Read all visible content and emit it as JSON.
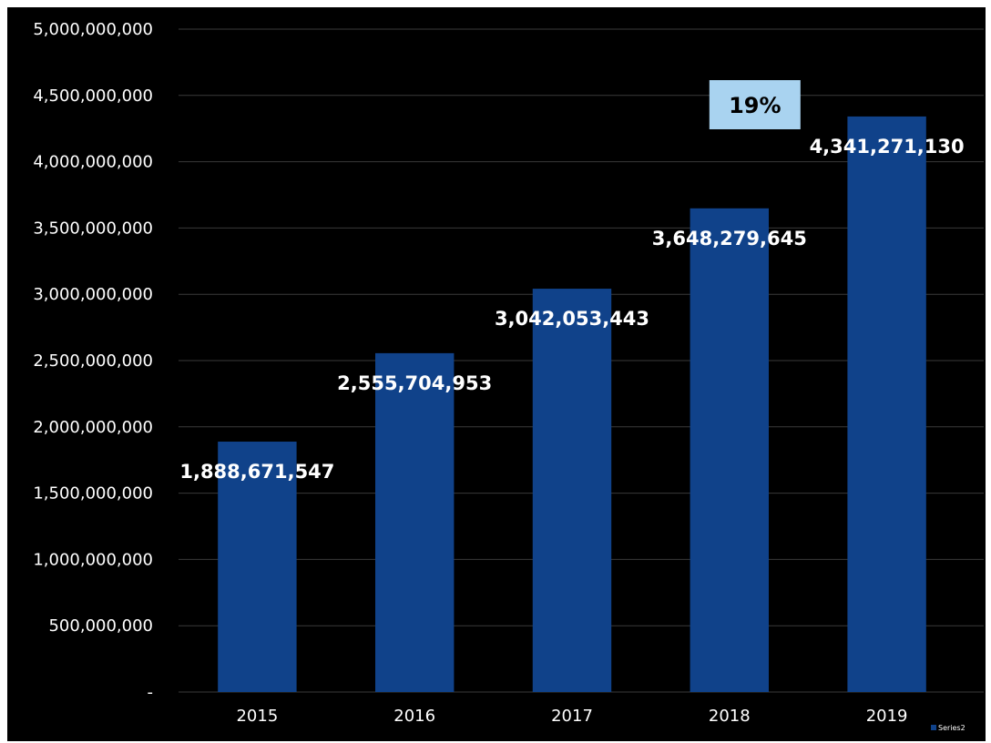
{
  "chart_data": {
    "type": "bar",
    "title": "",
    "xlabel": "",
    "ylabel": "",
    "categories": [
      "2015",
      "2016",
      "2017",
      "2018",
      "2019"
    ],
    "series": [
      {
        "name": "Series2",
        "values": [
          1888671547,
          2555704953,
          3042053443,
          3648279645,
          4341271130
        ],
        "labels": [
          "1,888,671,547",
          "2,555,704,953",
          "3,042,053,443",
          "3,648,279,645",
          "4,341,271,130"
        ],
        "color": "#10428a"
      }
    ],
    "ylim": [
      0,
      5000000000
    ],
    "yticks": [
      0,
      500000000,
      1000000000,
      1500000000,
      2000000000,
      2500000000,
      3000000000,
      3500000000,
      4000000000,
      4500000000,
      5000000000
    ],
    "ytick_labels": [
      "-",
      "500,000,000",
      "1,000,000,000",
      "1,500,000,000",
      "2,000,000,000",
      "2,500,000,000",
      "3,000,000,000",
      "3,500,000,000",
      "4,000,000,000",
      "4,500,000,000",
      "5,000,000,000"
    ],
    "grid": true,
    "legend": {
      "position": "bottom-right",
      "entries": [
        "Series2"
      ]
    },
    "annotations": [
      {
        "text": "19%",
        "near_category": "2018",
        "background": "#a9d3f0"
      }
    ],
    "colors": {
      "background": "#000000",
      "gridline": "#3a3a3a",
      "text": "#ffffff"
    }
  }
}
